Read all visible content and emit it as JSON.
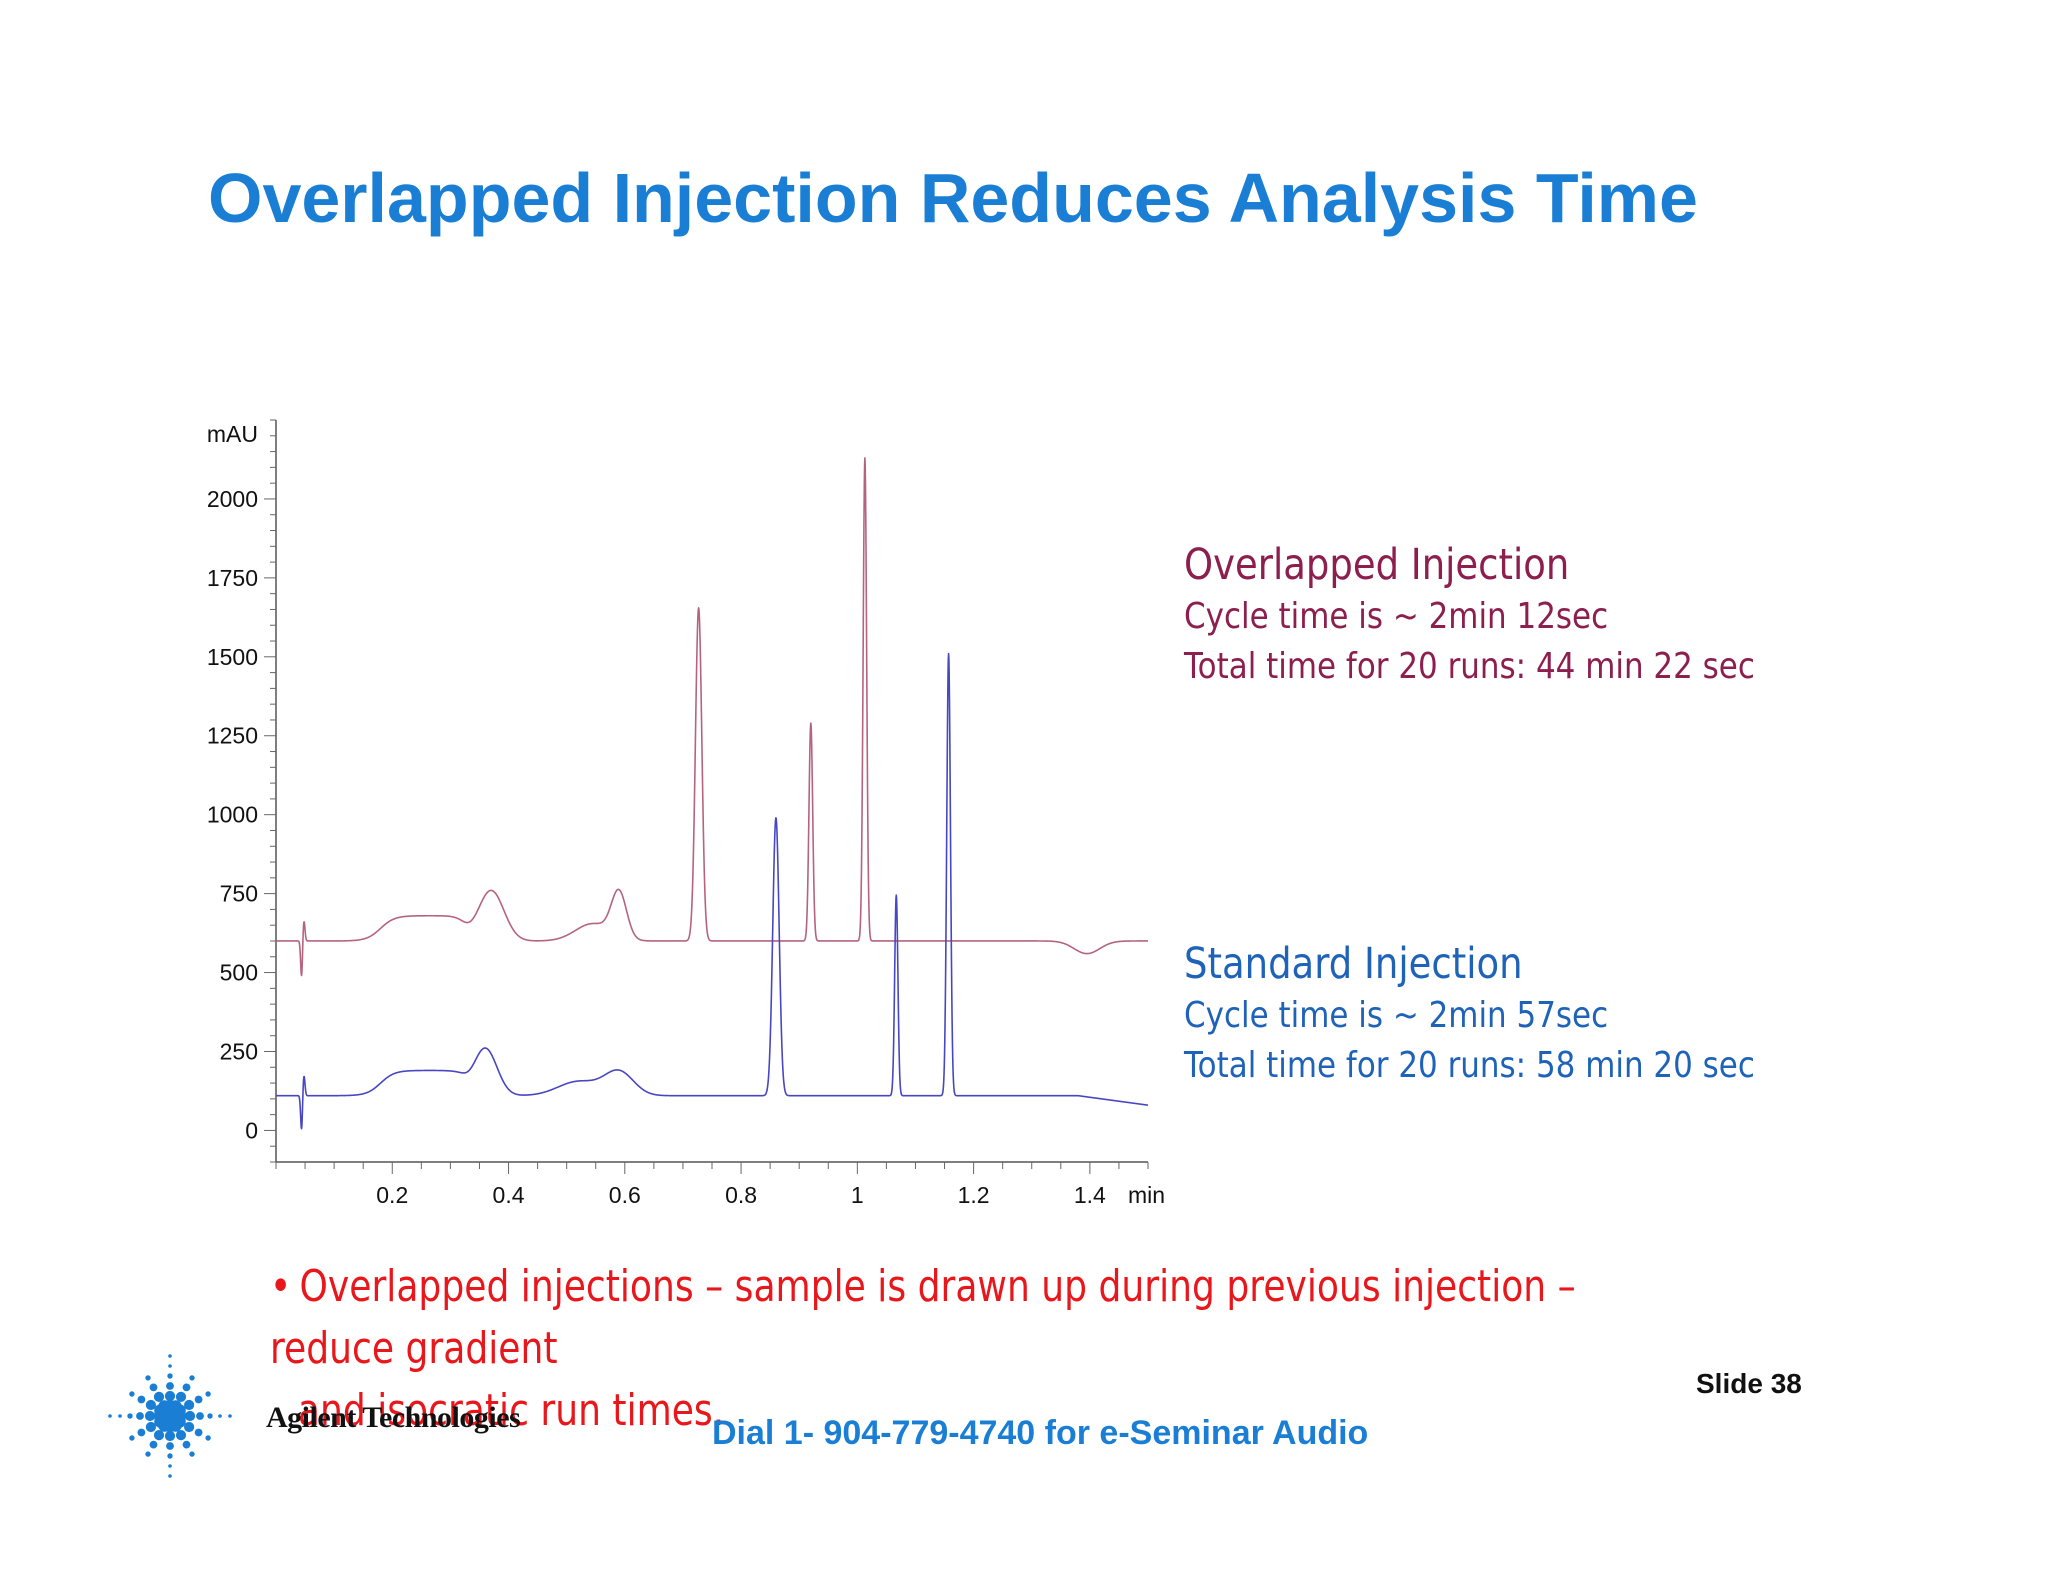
{
  "slide": {
    "title": "Overlapped Injection Reduces Analysis Time",
    "slide_number": "Slide 38",
    "footer": "Dial 1- 904-779-4740 for e-Seminar Audio",
    "logo_text": "Agilent Technologies",
    "bullet": {
      "marker": "•",
      "line1": "Overlapped injections – sample is drawn up during previous injection – reduce gradient",
      "line2": "and isocratic run times."
    },
    "legend_overlapped": {
      "title": "Overlapped Injection",
      "cycle": "Cycle time is ~ 2min 12sec",
      "total": "Total time for 20 runs: 44 min 22 sec",
      "color": "#8d1f4e"
    },
    "legend_standard": {
      "title": "Standard Injection",
      "cycle": "Cycle time is ~ 2min 57sec",
      "total": "Total time for 20 runs: 58 min 20 sec",
      "color": "#1f63b8"
    },
    "colors": {
      "title": "#1a7fd4",
      "bullet": "#e8171c",
      "logo": "#1a7fd4"
    }
  },
  "chart_data": {
    "type": "line",
    "title": "",
    "xlabel": "min",
    "ylabel": "mAU",
    "xlim": [
      0.0,
      1.5
    ],
    "ylim": [
      -100,
      2250
    ],
    "x_ticks": [
      0.2,
      0.4,
      0.6,
      0.8,
      1.0,
      1.2,
      1.4
    ],
    "x_tick_labels": [
      "0.2",
      "0.4",
      "0.6",
      "0.8",
      "1",
      "1.2",
      "1.4"
    ],
    "y_ticks": [
      0,
      250,
      500,
      750,
      1000,
      1250,
      1500,
      1750,
      2000
    ],
    "y_tick_labels": [
      "0",
      "250",
      "500",
      "750",
      "1000",
      "1250",
      "1500",
      "1750",
      "2000"
    ],
    "series": [
      {
        "name": "Overlapped Injection",
        "color": "#b5647e",
        "baseline": 600,
        "features": [
          {
            "type": "injection_spike",
            "center": 0.045,
            "up": 65,
            "down": 115
          },
          {
            "type": "hump",
            "start": 0.14,
            "end": 0.33,
            "height": 80
          },
          {
            "type": "peak",
            "center": 0.37,
            "height": 160,
            "width": 0.022
          },
          {
            "type": "peak",
            "center": 0.545,
            "height": 55,
            "width": 0.03
          },
          {
            "type": "peak",
            "center": 0.59,
            "height": 145,
            "width": 0.013
          },
          {
            "type": "peak",
            "center": 0.727,
            "height": 1055,
            "width": 0.0055
          },
          {
            "type": "peak",
            "center": 0.92,
            "height": 690,
            "width": 0.0032
          },
          {
            "type": "peak",
            "center": 1.013,
            "height": 1530,
            "width": 0.003
          },
          {
            "type": "dip",
            "center": 1.395,
            "depth": 40,
            "width": 0.022
          }
        ]
      },
      {
        "name": "Standard Injection",
        "color": "#4747c2",
        "baseline": 110,
        "features": [
          {
            "type": "injection_spike",
            "center": 0.045,
            "up": 65,
            "down": 110
          },
          {
            "type": "hump",
            "start": 0.14,
            "end": 0.33,
            "height": 80
          },
          {
            "type": "peak",
            "center": 0.36,
            "height": 150,
            "width": 0.02
          },
          {
            "type": "peak",
            "center": 0.52,
            "height": 45,
            "width": 0.035
          },
          {
            "type": "peak",
            "center": 0.59,
            "height": 75,
            "width": 0.025
          },
          {
            "type": "peak",
            "center": 0.86,
            "height": 880,
            "width": 0.0055
          },
          {
            "type": "peak",
            "center": 1.067,
            "height": 635,
            "width": 0.0028
          },
          {
            "type": "peak",
            "center": 1.157,
            "height": 1400,
            "width": 0.0032
          },
          {
            "type": "slope",
            "from": 1.38,
            "to": 1.5,
            "drop": 30
          }
        ]
      }
    ]
  }
}
